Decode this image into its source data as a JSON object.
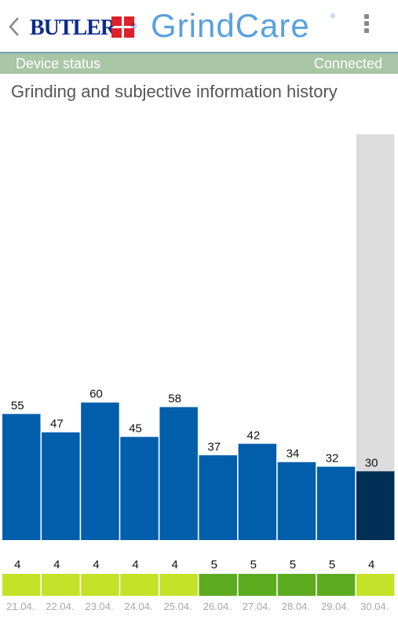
{
  "header": {
    "logo_text": "BUTLER",
    "logo_registered": "®",
    "brand_title": "GrindCare",
    "brand_registered": "®"
  },
  "status": {
    "label": "Device status",
    "value": "Connected"
  },
  "section": {
    "title": "Grinding and subjective information history"
  },
  "colors": {
    "bar": "#005eab",
    "bar_selected": "#002f55",
    "selected_bg": "#dcdcdc",
    "rating_4": "#c3e228",
    "rating_5": "#5dab1e",
    "brand": "#5aa0e0",
    "logo": "#0a2c8c",
    "logo_cross": "#e0202a"
  },
  "chart_data": {
    "type": "bar",
    "categories": [
      "21.04.",
      "22.04.",
      "23.04.",
      "24.04.",
      "25.04.",
      "26.04.",
      "27.04.",
      "28.04.",
      "29.04.",
      "30.04."
    ],
    "values": [
      55,
      47,
      60,
      45,
      58,
      37,
      42,
      34,
      32,
      30
    ],
    "ratings": [
      4,
      4,
      4,
      4,
      4,
      5,
      5,
      5,
      5,
      4
    ],
    "selected_index": 9,
    "title": "Grinding and subjective information history",
    "xlabel": "",
    "ylabel": "",
    "ylim": [
      0,
      177
    ]
  }
}
